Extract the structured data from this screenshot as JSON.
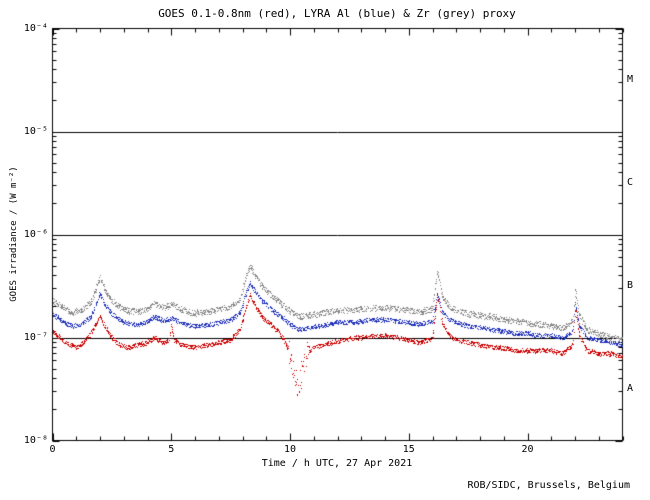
{
  "chart_data": {
    "type": "scatter",
    "title": "GOES 0.1-0.8nm (red), LYRA Al (blue) & Zr (grey) proxy",
    "xlabel": "Time / h UTC, 27 Apr 2021",
    "ylabel": "GOES irradiance / (W m⁻²)",
    "credit": "ROB/SIDC, Brussels, Belgium",
    "x_range": [
      0,
      24
    ],
    "y_log_range": [
      -8,
      -4
    ],
    "x_major_ticks": [
      0,
      5,
      10,
      15,
      20
    ],
    "x_tick_labels": [
      "0",
      "5",
      "10",
      "15",
      "20"
    ],
    "x_minor_step": 1,
    "y_ticks": [
      {
        "exp": -8,
        "label": "10⁻⁸"
      },
      {
        "exp": -7,
        "label": "10⁻⁷"
      },
      {
        "exp": -6,
        "label": "10⁻⁶"
      },
      {
        "exp": -5,
        "label": "10⁻⁵"
      },
      {
        "exp": -4,
        "label": "10⁻⁴"
      }
    ],
    "reference_lines": [
      1e-07,
      1e-06,
      1e-05
    ],
    "flare_classes": [
      {
        "label": "M",
        "band": [
          -5,
          -4
        ]
      },
      {
        "label": "C",
        "band": [
          -6,
          -5
        ]
      },
      {
        "label": "B",
        "band": [
          -7,
          -6
        ]
      },
      {
        "label": "A",
        "band": [
          -8,
          -7
        ]
      }
    ],
    "grid": false,
    "legend": "in title (colors)",
    "series": [
      {
        "name": "GOES 0.1-0.8nm",
        "color": "#cc0000",
        "points": [
          [
            0.0,
            1.15e-07
          ],
          [
            0.3,
            1e-07
          ],
          [
            0.7,
            8.5e-08
          ],
          [
            1.0,
            8e-08
          ],
          [
            1.3,
            9e-08
          ],
          [
            1.6,
            1.1e-07
          ],
          [
            1.85,
            1.4e-07
          ],
          [
            2.0,
            1.6e-07
          ],
          [
            2.2,
            1.3e-07
          ],
          [
            2.5,
            1e-07
          ],
          [
            2.8,
            8.5e-08
          ],
          [
            3.2,
            8e-08
          ],
          [
            3.6,
            8.5e-08
          ],
          [
            4.0,
            9e-08
          ],
          [
            4.3,
            1e-07
          ],
          [
            4.6,
            9e-08
          ],
          [
            4.9,
            9.5e-08
          ],
          [
            5.0,
            1.35e-07
          ],
          [
            5.1,
            9.5e-08
          ],
          [
            5.5,
            8.5e-08
          ],
          [
            6.0,
            8e-08
          ],
          [
            6.5,
            8.5e-08
          ],
          [
            7.0,
            9e-08
          ],
          [
            7.5,
            9.5e-08
          ],
          [
            7.9,
            1.2e-07
          ],
          [
            8.1,
            1.8e-07
          ],
          [
            8.3,
            2.6e-07
          ],
          [
            8.5,
            2.1e-07
          ],
          [
            8.8,
            1.6e-07
          ],
          [
            9.1,
            1.4e-07
          ],
          [
            9.4,
            1.2e-07
          ],
          [
            9.7,
            1e-07
          ],
          [
            10.0,
            7e-08
          ],
          [
            10.2,
            4e-08
          ],
          [
            10.35,
            3.3e-08
          ],
          [
            10.5,
            5e-08
          ],
          [
            10.7,
            7e-08
          ],
          [
            11.0,
            8e-08
          ],
          [
            11.4,
            8.5e-08
          ],
          [
            11.8,
            9e-08
          ],
          [
            12.2,
            9.5e-08
          ],
          [
            12.6,
            1e-07
          ],
          [
            13.0,
            1e-07
          ],
          [
            13.5,
            1.05e-07
          ],
          [
            14.0,
            1.05e-07
          ],
          [
            14.5,
            1e-07
          ],
          [
            15.0,
            9.5e-08
          ],
          [
            15.5,
            9e-08
          ],
          [
            16.0,
            1e-07
          ],
          [
            16.2,
            2.6e-07
          ],
          [
            16.4,
            1.4e-07
          ],
          [
            16.7,
            1.05e-07
          ],
          [
            17.0,
            9.5e-08
          ],
          [
            17.5,
            9e-08
          ],
          [
            18.0,
            8.5e-08
          ],
          [
            18.5,
            8e-08
          ],
          [
            19.0,
            8e-08
          ],
          [
            19.5,
            7.5e-08
          ],
          [
            20.0,
            7.5e-08
          ],
          [
            20.5,
            7.5e-08
          ],
          [
            21.0,
            7.5e-08
          ],
          [
            21.5,
            7e-08
          ],
          [
            21.9,
            8.5e-08
          ],
          [
            22.0,
            1.9e-07
          ],
          [
            22.15,
            1.1e-07
          ],
          [
            22.5,
            7.5e-08
          ],
          [
            23.0,
            7e-08
          ],
          [
            23.5,
            7e-08
          ],
          [
            24.0,
            6.5e-08
          ]
        ]
      },
      {
        "name": "LYRA Al proxy",
        "color": "#2233bb",
        "points": [
          [
            0.0,
            1.7e-07
          ],
          [
            0.4,
            1.45e-07
          ],
          [
            0.8,
            1.3e-07
          ],
          [
            1.2,
            1.35e-07
          ],
          [
            1.6,
            1.6e-07
          ],
          [
            1.85,
            2.2e-07
          ],
          [
            2.0,
            2.7e-07
          ],
          [
            2.2,
            2.1e-07
          ],
          [
            2.5,
            1.7e-07
          ],
          [
            2.9,
            1.45e-07
          ],
          [
            3.3,
            1.35e-07
          ],
          [
            3.7,
            1.35e-07
          ],
          [
            4.0,
            1.45e-07
          ],
          [
            4.3,
            1.6e-07
          ],
          [
            4.7,
            1.45e-07
          ],
          [
            5.0,
            1.55e-07
          ],
          [
            5.4,
            1.4e-07
          ],
          [
            5.8,
            1.3e-07
          ],
          [
            6.2,
            1.3e-07
          ],
          [
            6.6,
            1.35e-07
          ],
          [
            7.0,
            1.4e-07
          ],
          [
            7.5,
            1.5e-07
          ],
          [
            7.9,
            1.75e-07
          ],
          [
            8.1,
            2.5e-07
          ],
          [
            8.3,
            3.4e-07
          ],
          [
            8.5,
            2.9e-07
          ],
          [
            8.8,
            2.3e-07
          ],
          [
            9.1,
            2e-07
          ],
          [
            9.4,
            1.75e-07
          ],
          [
            9.7,
            1.55e-07
          ],
          [
            10.0,
            1.35e-07
          ],
          [
            10.4,
            1.2e-07
          ],
          [
            10.8,
            1.25e-07
          ],
          [
            11.2,
            1.3e-07
          ],
          [
            11.6,
            1.35e-07
          ],
          [
            12.0,
            1.4e-07
          ],
          [
            12.5,
            1.4e-07
          ],
          [
            13.0,
            1.45e-07
          ],
          [
            13.5,
            1.5e-07
          ],
          [
            14.0,
            1.5e-07
          ],
          [
            14.5,
            1.45e-07
          ],
          [
            15.0,
            1.4e-07
          ],
          [
            15.5,
            1.35e-07
          ],
          [
            16.0,
            1.45e-07
          ],
          [
            16.2,
            2.6e-07
          ],
          [
            16.4,
            1.8e-07
          ],
          [
            16.7,
            1.5e-07
          ],
          [
            17.0,
            1.4e-07
          ],
          [
            17.5,
            1.3e-07
          ],
          [
            18.0,
            1.25e-07
          ],
          [
            18.5,
            1.2e-07
          ],
          [
            19.0,
            1.15e-07
          ],
          [
            19.5,
            1.1e-07
          ],
          [
            20.0,
            1.1e-07
          ],
          [
            20.5,
            1.05e-07
          ],
          [
            21.0,
            1.05e-07
          ],
          [
            21.5,
            1e-07
          ],
          [
            21.9,
            1.15e-07
          ],
          [
            22.0,
            2.1e-07
          ],
          [
            22.15,
            1.35e-07
          ],
          [
            22.5,
            1e-07
          ],
          [
            23.0,
            9.5e-08
          ],
          [
            23.5,
            9e-08
          ],
          [
            24.0,
            8.5e-08
          ]
        ]
      },
      {
        "name": "LYRA Zr proxy",
        "color": "#888888",
        "points": [
          [
            0.0,
            2.3e-07
          ],
          [
            0.4,
            2e-07
          ],
          [
            0.8,
            1.75e-07
          ],
          [
            1.2,
            1.85e-07
          ],
          [
            1.6,
            2.2e-07
          ],
          [
            1.85,
            3.1e-07
          ],
          [
            2.0,
            3.8e-07
          ],
          [
            2.2,
            2.9e-07
          ],
          [
            2.5,
            2.3e-07
          ],
          [
            2.9,
            1.95e-07
          ],
          [
            3.3,
            1.8e-07
          ],
          [
            3.7,
            1.8e-07
          ],
          [
            4.0,
            1.95e-07
          ],
          [
            4.3,
            2.15e-07
          ],
          [
            4.7,
            1.95e-07
          ],
          [
            5.0,
            2.1e-07
          ],
          [
            5.4,
            1.9e-07
          ],
          [
            5.8,
            1.75e-07
          ],
          [
            6.2,
            1.75e-07
          ],
          [
            6.6,
            1.8e-07
          ],
          [
            7.0,
            1.9e-07
          ],
          [
            7.5,
            2e-07
          ],
          [
            7.9,
            2.4e-07
          ],
          [
            8.1,
            3.6e-07
          ],
          [
            8.3,
            5e-07
          ],
          [
            8.5,
            4.2e-07
          ],
          [
            8.8,
            3.2e-07
          ],
          [
            9.1,
            2.7e-07
          ],
          [
            9.4,
            2.35e-07
          ],
          [
            9.7,
            2.05e-07
          ],
          [
            10.0,
            1.8e-07
          ],
          [
            10.4,
            1.6e-07
          ],
          [
            10.8,
            1.65e-07
          ],
          [
            11.2,
            1.7e-07
          ],
          [
            11.6,
            1.8e-07
          ],
          [
            12.0,
            1.85e-07
          ],
          [
            12.5,
            1.85e-07
          ],
          [
            13.0,
            1.9e-07
          ],
          [
            13.5,
            1.95e-07
          ],
          [
            14.0,
            1.95e-07
          ],
          [
            14.5,
            1.9e-07
          ],
          [
            15.0,
            1.85e-07
          ],
          [
            15.5,
            1.8e-07
          ],
          [
            16.0,
            1.9e-07
          ],
          [
            16.2,
            4.5e-07
          ],
          [
            16.4,
            2.5e-07
          ],
          [
            16.7,
            2e-07
          ],
          [
            17.0,
            1.85e-07
          ],
          [
            17.5,
            1.7e-07
          ],
          [
            18.0,
            1.65e-07
          ],
          [
            18.5,
            1.6e-07
          ],
          [
            19.0,
            1.5e-07
          ],
          [
            19.5,
            1.45e-07
          ],
          [
            20.0,
            1.4e-07
          ],
          [
            20.5,
            1.35e-07
          ],
          [
            21.0,
            1.3e-07
          ],
          [
            21.5,
            1.25e-07
          ],
          [
            21.9,
            1.45e-07
          ],
          [
            22.0,
            2.9e-07
          ],
          [
            22.15,
            1.7e-07
          ],
          [
            22.5,
            1.2e-07
          ],
          [
            23.0,
            1.1e-07
          ],
          [
            23.5,
            1e-07
          ],
          [
            24.0,
            9.5e-08
          ]
        ]
      }
    ]
  }
}
